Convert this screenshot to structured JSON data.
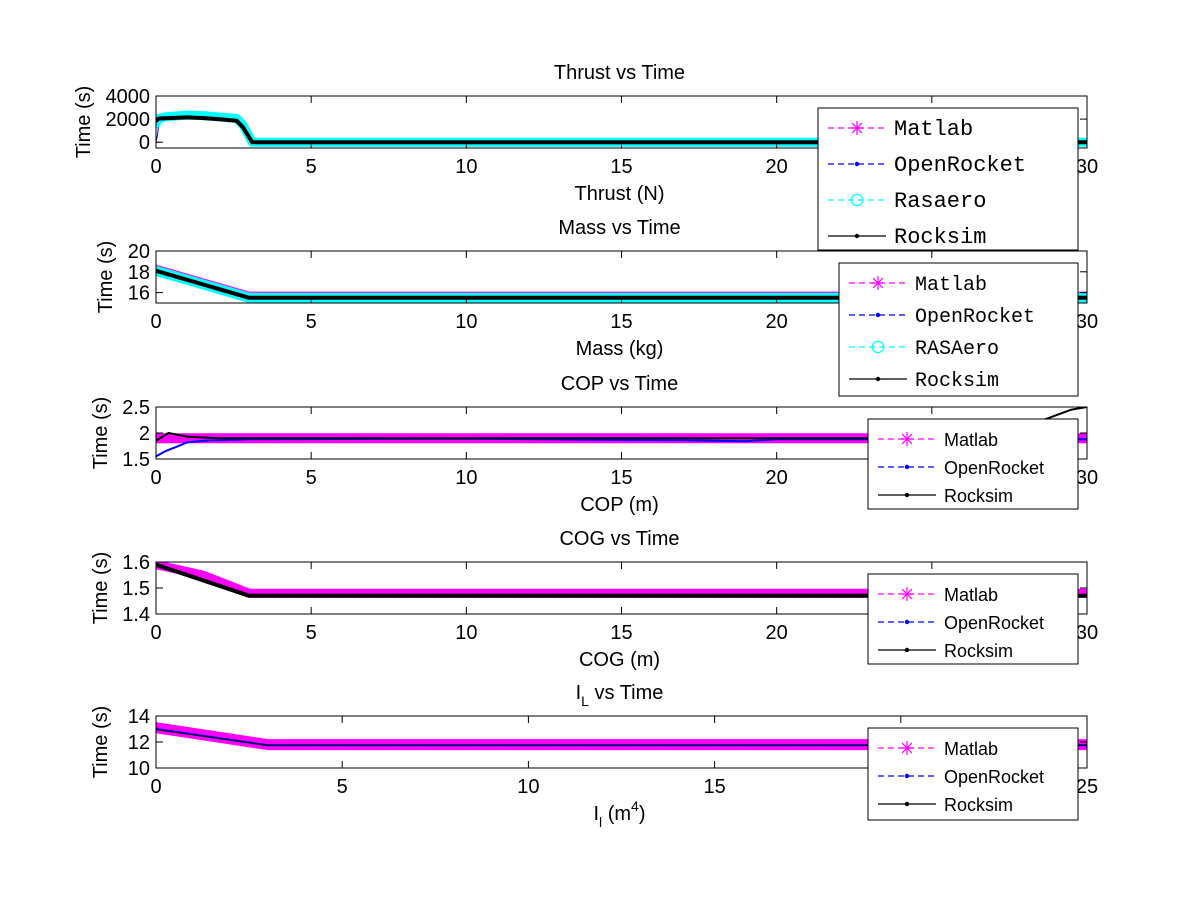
{
  "figure_background": "#ffffff",
  "chart_data": [
    {
      "type": "line",
      "title": "Thrust vs Time",
      "title_sub": "",
      "xlabel": "Thrust (N)",
      "xlabel_sup": "",
      "ylabel": "Time (s)",
      "xlim": [
        0,
        30
      ],
      "ylim": [
        -500,
        4000
      ],
      "xticks": [
        0,
        5,
        10,
        15,
        20,
        25,
        30
      ],
      "yticks": [
        0,
        2000,
        4000
      ],
      "grid": false,
      "legend_position": "top-right",
      "legend_font": "mono",
      "series": [
        {
          "name": "Matlab",
          "color": "#ff00ff",
          "marker": "asterisk",
          "width": 1,
          "x": [
            0,
            0.1
          ],
          "y": [
            0,
            0
          ]
        },
        {
          "name": "OpenRocket",
          "color": "#0000ff",
          "marker": "dot",
          "width": 1,
          "x": [
            0,
            0.05,
            0.1
          ],
          "y": [
            0,
            700,
            1800
          ]
        },
        {
          "name": "Rasaero",
          "color": "#00ffff",
          "marker": "circle",
          "width": 9,
          "x": [
            0,
            0.1,
            0.3,
            1,
            1.5,
            2,
            2.6,
            2.8,
            3.1,
            30
          ],
          "y": [
            1600,
            2050,
            2200,
            2350,
            2300,
            2200,
            2050,
            1500,
            0,
            0
          ]
        },
        {
          "name": "Rocksim",
          "color": "#000000",
          "marker": "dot",
          "width": 4,
          "x": [
            0,
            0.1,
            1,
            1.5,
            2,
            2.6,
            2.8,
            3.1,
            30
          ],
          "y": [
            1850,
            2050,
            2150,
            2100,
            2000,
            1850,
            1300,
            0,
            0
          ]
        }
      ]
    },
    {
      "type": "line",
      "title": "Mass vs Time",
      "title_sub": "",
      "xlabel": "Mass (kg)",
      "xlabel_sup": "",
      "ylabel": "Time (s)",
      "xlim": [
        0,
        30
      ],
      "ylim": [
        15,
        20
      ],
      "xticks": [
        0,
        5,
        10,
        15,
        20,
        25,
        30
      ],
      "yticks": [
        16,
        18,
        20
      ],
      "grid": false,
      "legend_position": "top-right",
      "legend_font": "mono",
      "series": [
        {
          "name": "Matlab",
          "color": "#ff00ff",
          "marker": "asterisk",
          "width": 2,
          "x": [
            0,
            3,
            30
          ],
          "y": [
            18.6,
            16.0,
            16.0
          ]
        },
        {
          "name": "OpenRocket",
          "color": "#0000ff",
          "marker": "dot",
          "width": 1,
          "x": [
            0,
            3,
            30
          ],
          "y": [
            18.1,
            15.5,
            15.5
          ]
        },
        {
          "name": "RASAero",
          "color": "#00ffff",
          "marker": "circle",
          "width": 10,
          "x": [
            0,
            3,
            30
          ],
          "y": [
            18.1,
            15.5,
            15.5
          ]
        },
        {
          "name": "Rocksim",
          "color": "#000000",
          "marker": "dot",
          "width": 4,
          "x": [
            0,
            3,
            30
          ],
          "y": [
            18.1,
            15.5,
            15.5
          ]
        }
      ]
    },
    {
      "type": "line",
      "title": "COP vs Time",
      "title_sub": "",
      "xlabel": "COP (m)",
      "xlabel_sup": "",
      "ylabel": "Time (s)",
      "xlim": [
        0,
        30
      ],
      "ylim": [
        1.5,
        2.5
      ],
      "xticks": [
        0,
        5,
        10,
        15,
        20,
        25,
        30
      ],
      "yticks": [
        1.5,
        2,
        2.5
      ],
      "grid": false,
      "legend_position": "top-right",
      "legend_font": "sans",
      "series": [
        {
          "name": "Matlab",
          "color": "#ff00ff",
          "marker": "asterisk",
          "width": 10,
          "x": [
            0,
            30
          ],
          "y": [
            1.9,
            1.9
          ]
        },
        {
          "name": "OpenRocket",
          "color": "#0000ff",
          "marker": "dot",
          "width": 2,
          "x": [
            0,
            0.3,
            0.6,
            1,
            1.5,
            3,
            10,
            17,
            19,
            20,
            26,
            30
          ],
          "y": [
            1.55,
            1.65,
            1.72,
            1.82,
            1.85,
            1.88,
            1.89,
            1.86,
            1.84,
            1.88,
            1.88,
            1.88
          ]
        },
        {
          "name": "Rocksim",
          "color": "#000000",
          "marker": "dot",
          "width": 2,
          "x": [
            0,
            0.4,
            1,
            2,
            3,
            5,
            27,
            29.5,
            30
          ],
          "y": [
            1.85,
            2.0,
            1.93,
            1.9,
            1.9,
            1.9,
            1.9,
            2.45,
            2.5
          ]
        }
      ]
    },
    {
      "type": "line",
      "title": "COG vs Time",
      "title_sub": "",
      "xlabel": "COG (m)",
      "xlabel_sup": "",
      "ylabel": "Time (s)",
      "xlim": [
        0,
        30
      ],
      "ylim": [
        1.4,
        1.6
      ],
      "xticks": [
        0,
        5,
        10,
        15,
        20,
        25,
        30
      ],
      "yticks": [
        1.4,
        1.5,
        1.6
      ],
      "grid": false,
      "legend_position": "top-right",
      "legend_font": "sans",
      "series": [
        {
          "name": "Matlab",
          "color": "#ff00ff",
          "marker": "asterisk",
          "width": 9,
          "x": [
            0,
            1.5,
            3,
            30
          ],
          "y": [
            1.59,
            1.55,
            1.48,
            1.48
          ]
        },
        {
          "name": "OpenRocket",
          "color": "#0000ff",
          "marker": "dot",
          "width": 1,
          "x": [
            0,
            3,
            30
          ],
          "y": [
            1.595,
            1.47,
            1.47
          ]
        },
        {
          "name": "Rocksim",
          "color": "#000000",
          "marker": "dot",
          "width": 4,
          "x": [
            0,
            1.5,
            3,
            30
          ],
          "y": [
            1.59,
            1.53,
            1.47,
            1.47
          ]
        }
      ]
    },
    {
      "type": "line",
      "title": "I",
      "title_sub": "L",
      "title_suffix": " vs Time",
      "xlabel": "I",
      "xlabel_sub": "l",
      "xlabel_suffix": " (m",
      "xlabel_sup": "4",
      "xlabel_end": ")",
      "ylabel": "Time (s)",
      "xlim": [
        0,
        25
      ],
      "ylim": [
        10,
        14
      ],
      "xticks": [
        0,
        5,
        10,
        15,
        20,
        25
      ],
      "yticks": [
        10,
        12,
        14
      ],
      "grid": false,
      "legend_position": "top-right",
      "legend_font": "sans",
      "series": [
        {
          "name": "Matlab",
          "color": "#ff00ff",
          "marker": "asterisk",
          "width": 11,
          "x": [
            0,
            3,
            25
          ],
          "y": [
            13.1,
            11.8,
            11.8
          ]
        },
        {
          "name": "OpenRocket",
          "color": "#0000ff",
          "marker": "dot",
          "width": 2,
          "x": [
            0,
            3,
            25
          ],
          "y": [
            13.0,
            11.75,
            11.75
          ]
        },
        {
          "name": "Rocksim",
          "color": "#000000",
          "marker": "dot",
          "width": 1,
          "x": [
            0,
            3,
            25
          ],
          "y": [
            12.95,
            11.75,
            11.75
          ]
        }
      ]
    }
  ]
}
